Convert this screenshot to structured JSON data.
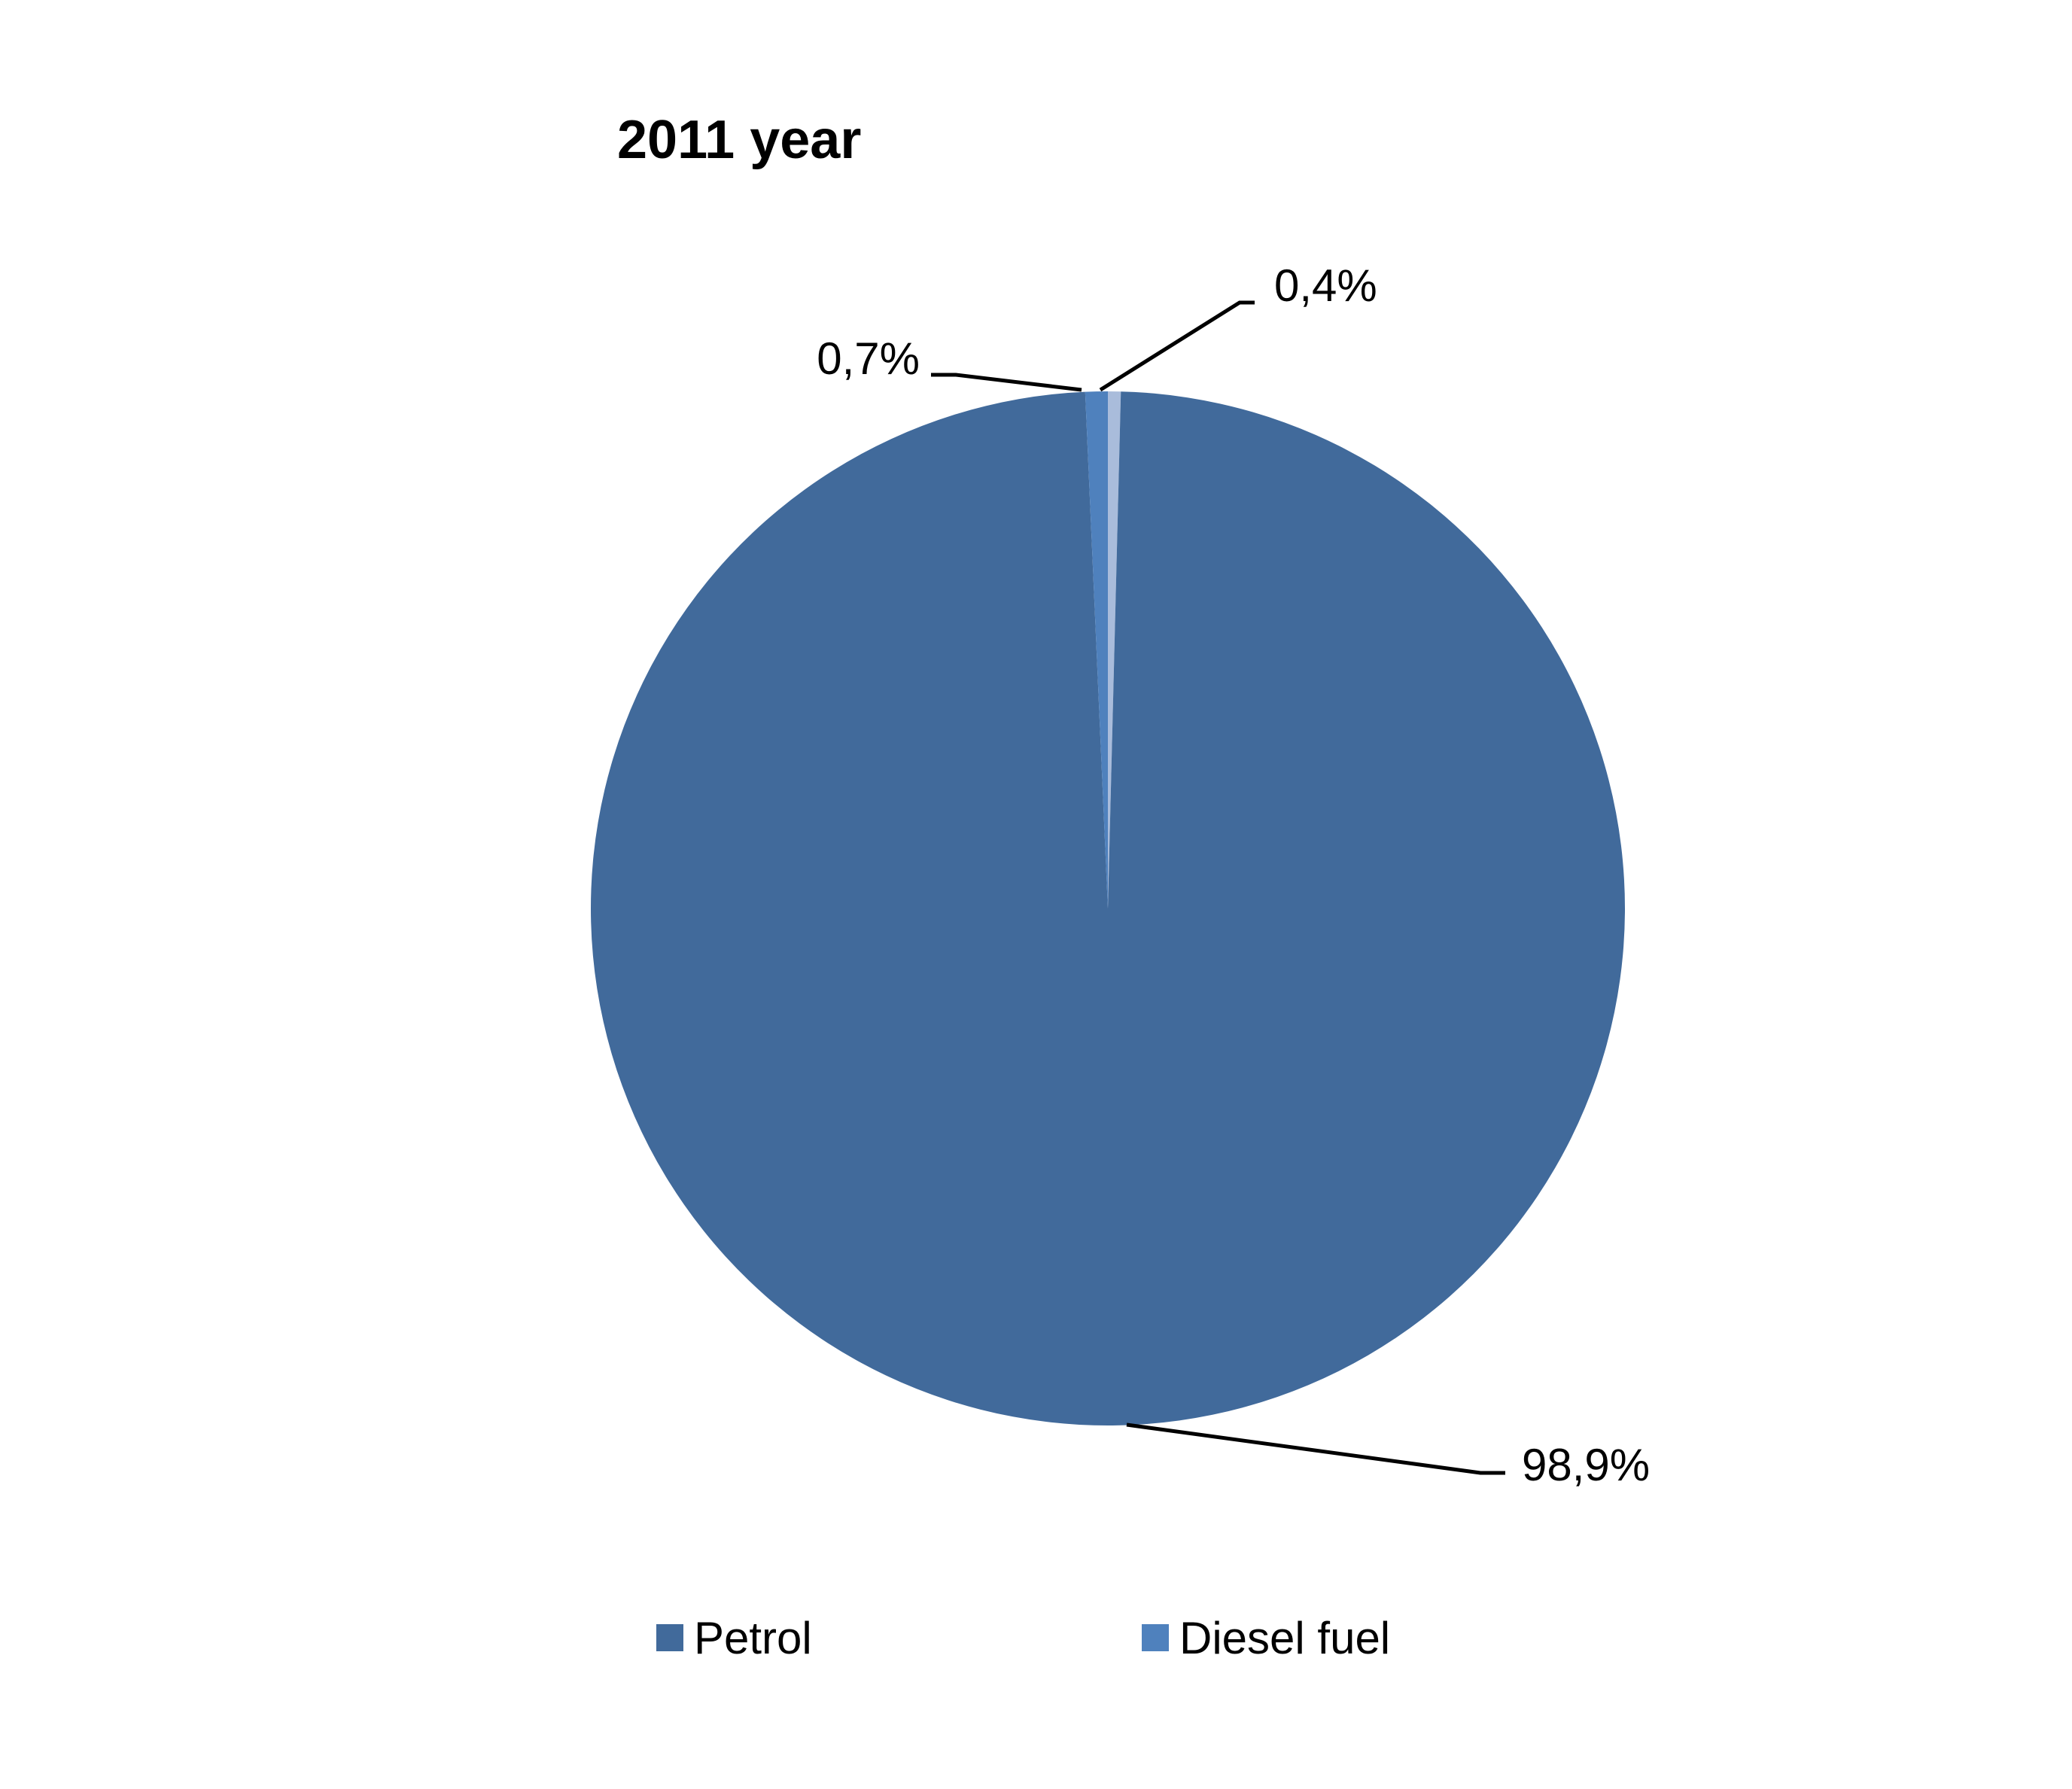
{
  "chart_data": {
    "type": "pie",
    "title": "2011 year",
    "slices": [
      {
        "name": "Petrol",
        "value": 98.9,
        "label": "98,9%",
        "color": "#416A9B"
      },
      {
        "name": "Diesel fuel",
        "value": 0.7,
        "label": "0,7%",
        "color": "#4F81BD"
      },
      {
        "name": "",
        "value": 0.4,
        "label": "0,4%",
        "color": "#A9BCDB"
      }
    ],
    "legend": {
      "position": "bottom",
      "items": [
        {
          "label": "Petrol",
          "color": "#416A9B"
        },
        {
          "label": "Diesel fuel",
          "color": "#4F81BD"
        }
      ]
    }
  }
}
